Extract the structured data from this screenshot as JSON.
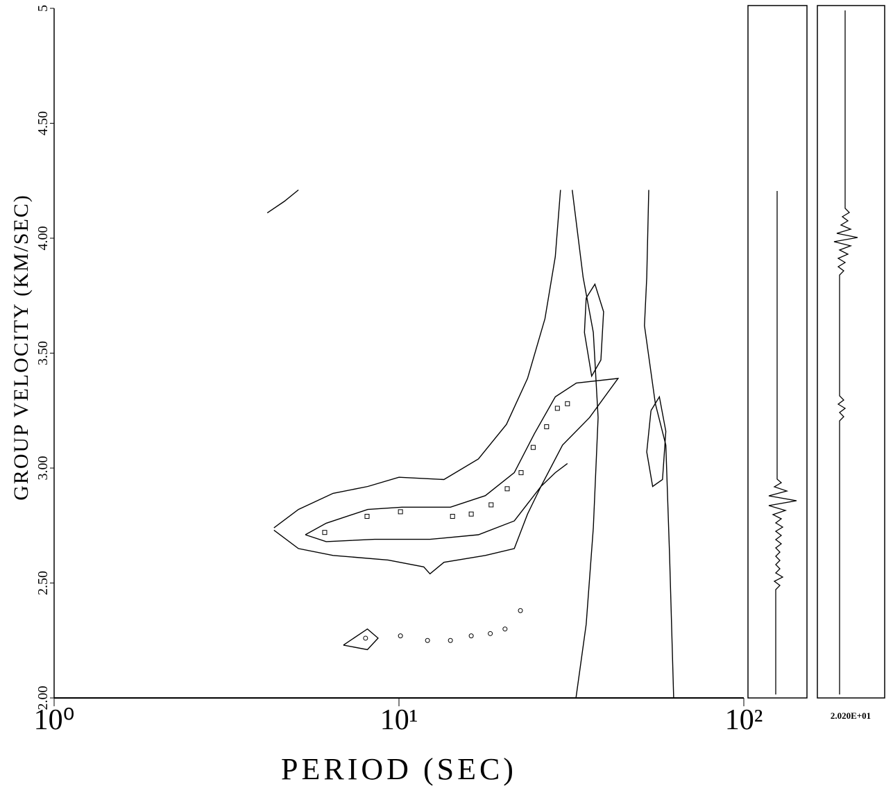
{
  "chart_data": {
    "type": "contour",
    "xlabel": "PERIOD (SEC)",
    "ylabel": "GROUP VELOCITY (KM/SEC)",
    "xscale": "log",
    "xlim": [
      1,
      100
    ],
    "ylim": [
      2,
      5
    ],
    "xticks": [
      {
        "value": 1,
        "label": "10⁰"
      },
      {
        "value": 10,
        "label": "10¹"
      },
      {
        "value": 100,
        "label": "10²"
      }
    ],
    "yticks": [
      {
        "value": 2,
        "label": "2.00"
      },
      {
        "value": 2.5,
        "label": "2.50"
      },
      {
        "value": 3,
        "label": "3.00"
      },
      {
        "value": 3.5,
        "label": "3.50"
      },
      {
        "value": 4,
        "label": "4.00"
      },
      {
        "value": 4.5,
        "label": "4.50"
      },
      5
    ],
    "color": "#000000",
    "contours": [
      {
        "x": [
          4.34,
          5.11,
          6.44,
          8.12,
          10.0,
          13.5,
          17.0,
          20.5,
          23.6,
          26.5,
          28.4,
          29.4
        ],
        "y": [
          2.74,
          2.82,
          2.89,
          2.92,
          2.96,
          2.95,
          3.04,
          3.19,
          3.39,
          3.65,
          3.92,
          4.21
        ]
      },
      {
        "x": [
          4.34,
          5.11,
          6.44,
          9.3,
          11.8,
          12.3,
          13.5,
          17.8,
          21.6,
          23.6,
          25.8,
          28.4,
          30.8
        ],
        "y": [
          2.73,
          2.65,
          2.62,
          2.6,
          2.57,
          2.54,
          2.59,
          2.62,
          2.65,
          2.8,
          2.92,
          2.98,
          3.02
        ]
      },
      {
        "x": [
          5.35,
          6.15,
          8.12,
          10.2,
          14.1,
          17.8,
          21.6,
          24.7,
          28.4,
          32.7,
          43.2,
          35.7,
          29.8,
          25.8,
          21.6,
          17.0,
          12.3,
          8.5,
          6.15,
          5.35
        ],
        "y": [
          2.71,
          2.76,
          2.82,
          2.83,
          2.83,
          2.88,
          2.98,
          3.15,
          3.31,
          3.37,
          3.39,
          3.22,
          3.1,
          2.92,
          2.77,
          2.71,
          2.69,
          2.69,
          2.68,
          2.71
        ]
      },
      {
        "x": [
          53.0,
          52.3,
          51.5,
          55.4,
          59.4,
          60.9,
          62.6
        ],
        "y": [
          4.21,
          3.83,
          3.62,
          3.28,
          3.1,
          2.62,
          2.0
        ]
      },
      {
        "x": [
          31.8,
          34.2,
          36.6,
          37.8,
          36.6,
          34.9,
          32.6
        ],
        "y": [
          4.21,
          3.83,
          3.59,
          3.22,
          2.74,
          2.32,
          2.0
        ]
      },
      {
        "x": [
          34.9,
          37.0,
          39.2,
          38.5,
          36.2,
          34.5,
          34.9
        ],
        "y": [
          3.74,
          3.8,
          3.68,
          3.47,
          3.4,
          3.59,
          3.74
        ]
      },
      {
        "x": [
          53.8,
          56.9,
          59.4,
          58.1,
          54.4,
          52.3,
          53.8
        ],
        "y": [
          3.25,
          3.31,
          3.16,
          2.95,
          2.92,
          3.07,
          3.25
        ]
      },
      {
        "x": [
          6.9,
          8.1,
          8.7,
          8.1,
          6.9
        ],
        "y": [
          2.23,
          2.3,
          2.26,
          2.21,
          2.23
        ]
      },
      {
        "x": [
          4.15,
          4.65,
          5.11
        ],
        "y": [
          4.11,
          4.16,
          4.21
        ]
      }
    ],
    "series": [
      {
        "marker": "square",
        "x": [
          6.09,
          8.08,
          10.1,
          14.3,
          16.2,
          18.5,
          20.6,
          22.6,
          24.5,
          26.8,
          28.8,
          30.8
        ],
        "values": [
          2.72,
          2.79,
          2.81,
          2.79,
          2.8,
          2.84,
          2.91,
          2.98,
          3.09,
          3.18,
          3.26,
          3.28
        ]
      },
      {
        "marker": "circle",
        "x": [
          8.0,
          10.1,
          12.1,
          14.1,
          16.2,
          18.4,
          20.3,
          22.5
        ],
        "values": [
          2.26,
          2.27,
          2.25,
          2.25,
          2.27,
          2.28,
          2.3,
          2.38
        ]
      }
    ],
    "annotation": "2.020E+01"
  }
}
